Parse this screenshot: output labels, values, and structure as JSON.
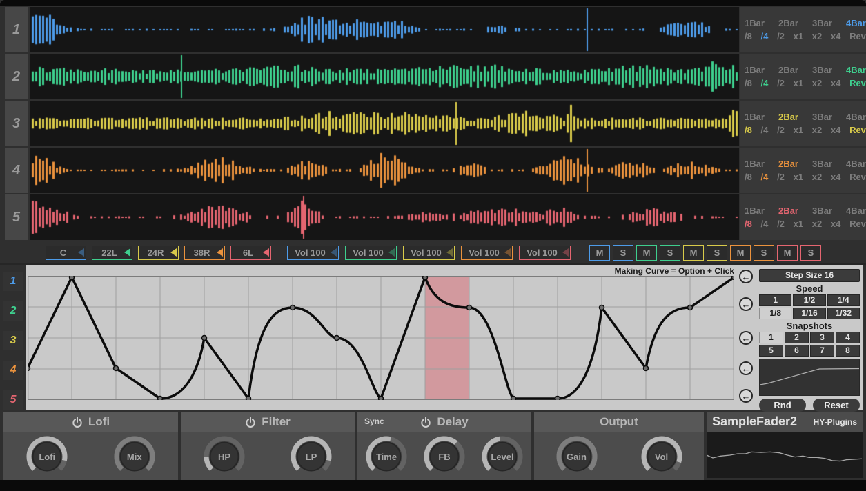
{
  "app": {
    "name": "SampleFader2",
    "vendor": "HY-Plugins"
  },
  "tracks": [
    {
      "number": "1",
      "color": "#4d9be8",
      "bar_selected": "4Bar",
      "rate_selected": "/4",
      "rev_active": false,
      "pan": "C",
      "pan_tri_dim": true,
      "vol": "Vol 100",
      "playhead": 0.785,
      "wave": {
        "seed": 11,
        "base": 0.05,
        "skip": 0.45,
        "bursts": [
          [
            0.012,
            1.0,
            0.03
          ],
          [
            0.4,
            0.75,
            0.035
          ],
          [
            0.47,
            0.6,
            0.03
          ],
          [
            0.52,
            0.45,
            0.02
          ],
          [
            0.66,
            0.28,
            0.02
          ],
          [
            0.925,
            0.5,
            0.035
          ]
        ]
      }
    },
    {
      "number": "2",
      "color": "#3ecf8e",
      "bar_selected": "4Bar",
      "rate_selected": "/4",
      "rev_active": true,
      "pan": "22L",
      "pan_tri_dim": false,
      "vol": "Vol 100",
      "playhead": 0.213,
      "wave": {
        "seed": 22,
        "base": 0.32,
        "skip": 0.06,
        "bursts": [
          [
            0.05,
            0.25,
            0.08
          ],
          [
            0.35,
            0.3,
            0.1
          ],
          [
            0.62,
            0.35,
            0.09
          ],
          [
            0.85,
            0.3,
            0.05
          ],
          [
            0.97,
            0.6,
            0.025
          ]
        ]
      }
    },
    {
      "number": "3",
      "color": "#d8ca4a",
      "bar_selected": "2Bar",
      "rate_selected": "/8",
      "rev_active": true,
      "pan": "24R",
      "pan_tri_dim": false,
      "vol": "Vol 100",
      "playhead": 0.6,
      "wave": {
        "seed": 33,
        "base": 0.3,
        "skip": 0.08,
        "bursts": [
          [
            0.45,
            0.4,
            0.06
          ],
          [
            0.55,
            0.3,
            0.04
          ],
          [
            0.765,
            0.85,
            0.006
          ],
          [
            0.7,
            0.35,
            0.04
          ],
          [
            0.995,
            0.5,
            0.01
          ]
        ]
      }
    },
    {
      "number": "4",
      "color": "#ea923d",
      "bar_selected": "2Bar",
      "rate_selected": "/4",
      "rev_active": false,
      "pan": "38R",
      "pan_tri_dim": false,
      "vol": "Vol 100",
      "playhead": 0.785,
      "wave": {
        "seed": 44,
        "base": 0.06,
        "skip": 0.42,
        "bursts": [
          [
            0.012,
            0.8,
            0.025
          ],
          [
            0.265,
            0.7,
            0.035
          ],
          [
            0.39,
            0.5,
            0.025
          ],
          [
            0.5,
            0.85,
            0.03
          ],
          [
            0.62,
            0.35,
            0.02
          ],
          [
            0.755,
            0.75,
            0.03
          ],
          [
            0.845,
            0.45,
            0.03
          ],
          [
            0.93,
            0.4,
            0.03
          ]
        ]
      }
    },
    {
      "number": "5",
      "color": "#e46570",
      "bar_selected": "2Bar",
      "rate_selected": "/8",
      "rev_active": false,
      "pan": "6L",
      "pan_tri_dim": false,
      "vol": "Vol 100",
      "playhead": 0.385,
      "wave": {
        "seed": 55,
        "base": 0.06,
        "skip": 0.4,
        "bursts": [
          [
            0.012,
            0.9,
            0.035
          ],
          [
            0.265,
            0.6,
            0.04
          ],
          [
            0.385,
            0.8,
            0.02
          ],
          [
            0.56,
            0.3,
            0.03
          ],
          [
            0.66,
            0.5,
            0.05
          ],
          [
            0.75,
            0.45,
            0.025
          ],
          [
            0.88,
            0.42,
            0.035
          ]
        ]
      }
    }
  ],
  "bar_options": [
    "1Bar",
    "2Bar",
    "3Bar",
    "4Bar"
  ],
  "rate_options": [
    "/8",
    "/4",
    "/2",
    "x1",
    "x2",
    "x4"
  ],
  "rev_label": "Rev",
  "mute_label": "M",
  "solo_label": "S",
  "curve_editor": {
    "hint": "Making Curve  = Option + Click",
    "steps": 16,
    "active_step": 9,
    "highlight_color": "rgba(216,125,132,0.62)",
    "values": [
      0.25,
      1,
      0.25,
      0,
      0.5,
      0,
      0.75,
      0.5,
      0,
      1,
      0.75,
      0,
      0,
      0.75,
      0.25,
      0.75,
      1
    ],
    "segment_shapes": [
      "l",
      "l",
      "l",
      "riseLate",
      "l",
      "decay",
      "sLate",
      "dropLate",
      "l",
      "decay",
      "dropLate",
      "l",
      "riseLate",
      "l",
      "decay",
      "l"
    ],
    "arrow_glyph": "←"
  },
  "right_panel": {
    "step_size_label": "Step Size 16",
    "speed_label": "Speed",
    "speed_options": [
      "1",
      "1/2",
      "1/4",
      "1/8",
      "1/16",
      "1/32"
    ],
    "speed_selected": "1/8",
    "snapshots_label": "Snapshots",
    "snapshot_options": [
      "1",
      "2",
      "3",
      "4",
      "5",
      "6",
      "7",
      "8"
    ],
    "snapshot_selected": "1",
    "rnd_label": "Rnd",
    "reset_label": "Reset",
    "mini_curve": [
      [
        0,
        0.74
      ],
      [
        0.08,
        0.7
      ],
      [
        0.55,
        0.32
      ],
      [
        0.6,
        0.28
      ],
      [
        1,
        0.27
      ]
    ]
  },
  "fx": {
    "sync_label": "Sync",
    "sections": [
      {
        "title": "Lofi",
        "power": true,
        "knobs": [
          {
            "label": "Lofi",
            "value": 0.88,
            "dim": false
          },
          {
            "label": "Mix",
            "value": 1,
            "dim": true
          }
        ]
      },
      {
        "title": "Filter",
        "power": true,
        "knobs": [
          {
            "label": "HP",
            "value": 0.16,
            "dim": false
          },
          {
            "label": "LP",
            "value": 0.88,
            "dim": false
          }
        ]
      },
      {
        "title": "Delay",
        "power": true,
        "sync": true,
        "knobs": [
          {
            "label": "Time",
            "value": 0.55,
            "dim": false
          },
          {
            "label": "FB",
            "value": 0.65,
            "dim": false
          },
          {
            "label": "Level",
            "value": 0.47,
            "dim": false
          }
        ]
      },
      {
        "title": "Output",
        "power": false,
        "knobs": [
          {
            "label": "Gain",
            "value": 1,
            "dim": true
          },
          {
            "label": "Vol",
            "value": 0.9,
            "dim": false
          }
        ]
      }
    ]
  },
  "brand": {
    "scope_curve": [
      [
        0,
        0.5
      ],
      [
        0.04,
        0.56
      ],
      [
        0.09,
        0.52
      ],
      [
        0.15,
        0.5
      ],
      [
        0.2,
        0.47
      ],
      [
        0.25,
        0.47
      ],
      [
        0.29,
        0.43
      ],
      [
        0.35,
        0.44
      ],
      [
        0.41,
        0.43
      ],
      [
        0.47,
        0.45
      ],
      [
        0.52,
        0.5
      ],
      [
        0.57,
        0.54
      ],
      [
        0.62,
        0.52
      ],
      [
        0.66,
        0.55
      ],
      [
        0.71,
        0.55
      ],
      [
        0.76,
        0.57
      ],
      [
        0.81,
        0.62
      ],
      [
        0.86,
        0.63
      ],
      [
        0.9,
        0.6
      ],
      [
        0.95,
        0.59
      ],
      [
        1,
        0.58
      ]
    ]
  }
}
